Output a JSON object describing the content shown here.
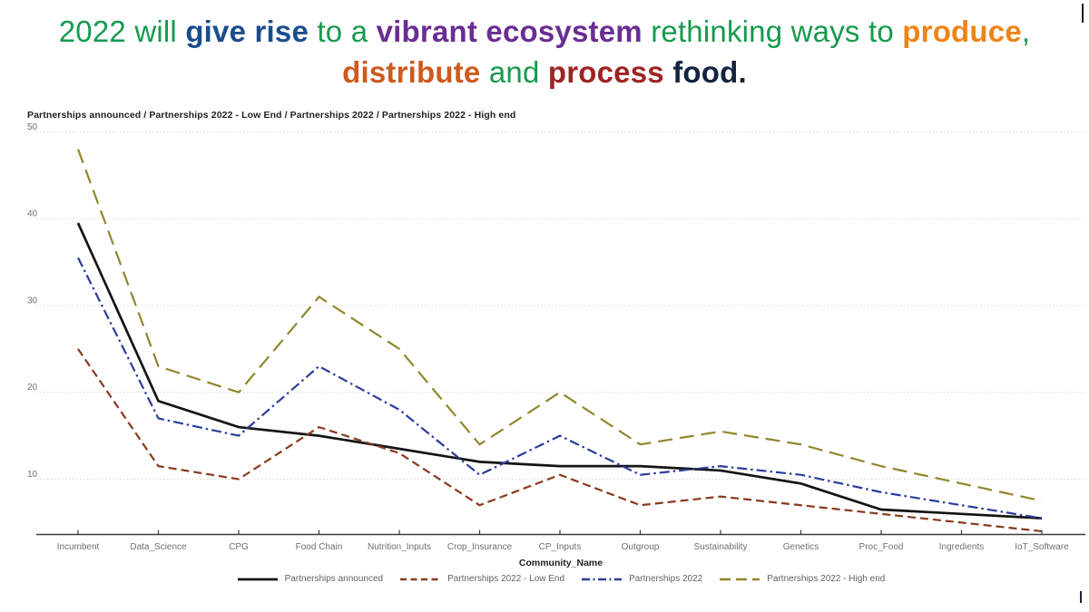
{
  "title": {
    "segments": [
      [
        {
          "text": "2022 will ",
          "color": "#169a4e",
          "bold": false
        },
        {
          "text": "give rise",
          "color": "#1b4d8e",
          "bold": true
        },
        {
          "text": " to a ",
          "color": "#169a4e",
          "bold": false
        },
        {
          "text": "vibrant ecosystem",
          "color": "#6a2d91",
          "bold": true
        },
        {
          "text": " rethinking ways to ",
          "color": "#169a4e",
          "bold": false
        },
        {
          "text": "produce",
          "color": "#ee8419",
          "bold": true
        },
        {
          "text": ",",
          "color": "#169a4e",
          "bold": false
        }
      ],
      [
        {
          "text": "distribute",
          "color": "#cd5a1e",
          "bold": true
        },
        {
          "text": " and ",
          "color": "#169a4e",
          "bold": false
        },
        {
          "text": "process",
          "color": "#9e2424",
          "bold": true
        },
        {
          "text": " food.",
          "color": "#13233f",
          "bold": true
        }
      ]
    ]
  },
  "chart_data": {
    "type": "line",
    "title": "Partnerships announced / Partnerships 2022 - Low End / Partnerships 2022 / Partnerships 2022 - High end",
    "xlabel": "Community_Name",
    "ylabel": "",
    "y_ticks": [
      10,
      20,
      30,
      40,
      50
    ],
    "ylim": [
      3.5,
      50.5
    ],
    "grid": "horizontal-dotted",
    "legend_position": "bottom",
    "categories": [
      "Incumbent",
      "Data_Science",
      "CPG",
      "Food Chain",
      "Nutrition_Inputs",
      "Crop_Insurance",
      "CP_Inputs",
      "Outgroup",
      "Sustainability",
      "Genetics",
      "Proc_Food",
      "Ingredients",
      "IoT_Software"
    ],
    "series": [
      {
        "name": "Partnerships announced",
        "color": "#141414",
        "dash": "solid",
        "values": [
          39.5,
          19,
          16,
          15,
          13.5,
          12,
          11.5,
          11.5,
          11,
          9.5,
          6.5,
          6,
          5.5
        ]
      },
      {
        "name": "Partnerships 2022 - Low End",
        "color": "#8a3a20",
        "dash": "dashed",
        "values": [
          25,
          11.5,
          10,
          16,
          13,
          7,
          10.5,
          7,
          8,
          7,
          6,
          5,
          4
        ]
      },
      {
        "name": "Partnerships 2022",
        "color": "#2b3d9b",
        "dash": "dash-dot",
        "values": [
          35.5,
          17,
          15,
          23,
          18,
          10.5,
          15,
          10.5,
          11.5,
          10.5,
          8.5,
          7,
          5.5
        ]
      },
      {
        "name": "Partnerships 2022 - High end",
        "color": "#91862c",
        "dash": "long-dash",
        "values": [
          48,
          23,
          20,
          31,
          25,
          14,
          20,
          14,
          15.5,
          14,
          11.5,
          9.5,
          7.5
        ]
      }
    ]
  },
  "style": {
    "gridline_color": "#d9d9d9",
    "axis_color": "#3c3c3c",
    "tick_label_color": "#707070",
    "legend_text_color": "#5f6368"
  }
}
